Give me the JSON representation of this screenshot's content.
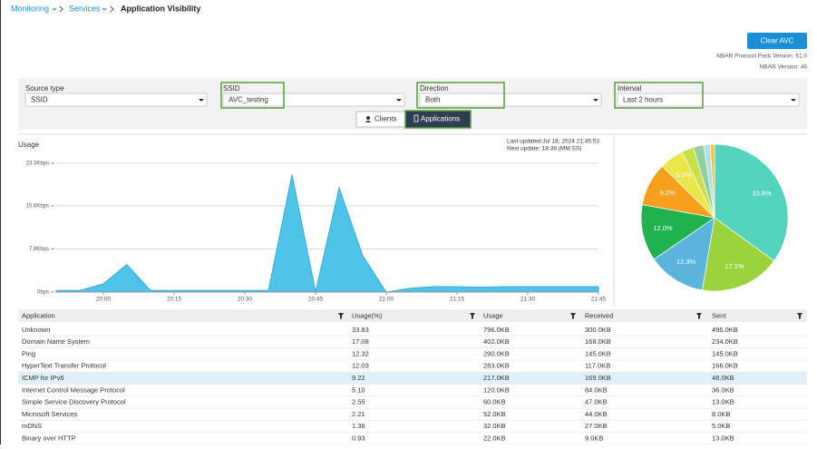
{
  "breadcrumb": [
    "Monitoring",
    "Services",
    "Application Visibility"
  ],
  "clear_button": "Clear AVC",
  "protocol_pack": "NBAR Protocol Pack Version: 61.0",
  "nbar_version": "NBAR Version: 46",
  "filters": [
    {
      "label": "Source type",
      "value": "SSID"
    },
    {
      "label": "SSID",
      "value": "AVC_testing"
    },
    {
      "label": "Direction",
      "value": "Both"
    },
    {
      "label": "Interval",
      "value": "Last 2 hours"
    }
  ],
  "tabs": [
    "Clients",
    "Applications"
  ],
  "usage_chart": {
    "type": "area",
    "title": "Usage",
    "last_updated": "Last updated:Jul 18, 2024 21:45:53",
    "next_update": "Next update: 18:39 (MM:SS)",
    "color": "#4fc3e8",
    "x": [
      1190,
      1195,
      1200,
      1205,
      1210,
      1215,
      1220,
      1225,
      1230,
      1235,
      1240,
      1245,
      1250,
      1255,
      1260,
      1265,
      1270,
      1275,
      1280,
      1285,
      1290,
      1295,
      1300,
      1305
    ],
    "values": [
      0.3,
      0.3,
      1.5,
      5.0,
      0.3,
      0.3,
      0.3,
      0.3,
      0.3,
      0.3,
      21.3,
      0.1,
      18.9,
      6.6,
      0,
      0.7,
      1.0,
      1.0,
      0.9,
      1.0,
      1.0,
      1.0,
      1.0,
      1.0
    ],
    "xlim": [
      1190,
      1305
    ],
    "xticks": [
      {
        "value": 1200,
        "label": "20:00"
      },
      {
        "value": 1215,
        "label": "20:15"
      },
      {
        "value": 1230,
        "label": "20:30"
      },
      {
        "value": 1245,
        "label": "20:45"
      },
      {
        "value": 1260,
        "label": "21:00"
      },
      {
        "value": 1275,
        "label": "21:15"
      },
      {
        "value": 1290,
        "label": "21:30"
      },
      {
        "value": 1305,
        "label": "21:45"
      }
    ],
    "ylim": [
      0,
      23.3
    ],
    "yticks": [
      {
        "value": 0,
        "label": "0bps"
      },
      {
        "value": 7.8,
        "label": "7.8Kbps"
      },
      {
        "value": 15.6,
        "label": "15.6Kbps"
      },
      {
        "value": 23.3,
        "label": "23.3Kbps"
      }
    ],
    "grid": true
  },
  "usage_pie": {
    "type": "pie",
    "values": [
      33.8,
      17.1,
      12.3,
      12.0,
      9.2,
      5.1,
      2.6,
      2.2,
      1.4,
      0.9
    ],
    "value_labels": [
      "33.8%",
      "17.1%",
      "12.3%",
      "12.0%",
      "9.2%",
      "5.1%",
      null,
      null,
      null,
      null
    ],
    "colors": [
      "#52d3bd",
      "#9ad33c",
      "#5ab4dc",
      "#20b24e",
      "#f7a01e",
      "#e9e74a",
      "#c8e04a",
      "#8fd0a0",
      "#b0e0e6",
      "#f5c242"
    ]
  },
  "table": {
    "columns": [
      "Application",
      "Usage(%)",
      "Usage",
      "Received",
      "Sent"
    ],
    "highlighted_row": 4,
    "rows": [
      [
        "Unknown",
        "33.83",
        "796.0KB",
        "300.0KB",
        "496.0KB"
      ],
      [
        "Domain Name System",
        "17.08",
        "402.0KB",
        "168.0KB",
        "234.0KB"
      ],
      [
        "Ping",
        "12.32",
        "290.0KB",
        "145.0KB",
        "145.0KB"
      ],
      [
        "HyperText Transfer Protocol",
        "12.03",
        "283.0KB",
        "117.0KB",
        "166.0KB"
      ],
      [
        "ICMP for IPv6",
        "9.22",
        "217.0KB",
        "169.0KB",
        "48.0KB"
      ],
      [
        "Internet Control Message Protocol",
        "5.10",
        "120.0KB",
        "84.0KB",
        "36.0KB"
      ],
      [
        "Simple Service Discovery Protocol",
        "2.55",
        "60.0KB",
        "47.0KB",
        "13.0KB"
      ],
      [
        "Microsoft Services",
        "2.21",
        "52.0KB",
        "44.0KB",
        "8.0KB"
      ],
      [
        "mDNS",
        "1.36",
        "32.0KB",
        "27.0KB",
        "5.0KB"
      ],
      [
        "Binary over HTTP",
        "0.93",
        "22.0KB",
        "9.0KB",
        "13.0KB"
      ]
    ]
  }
}
